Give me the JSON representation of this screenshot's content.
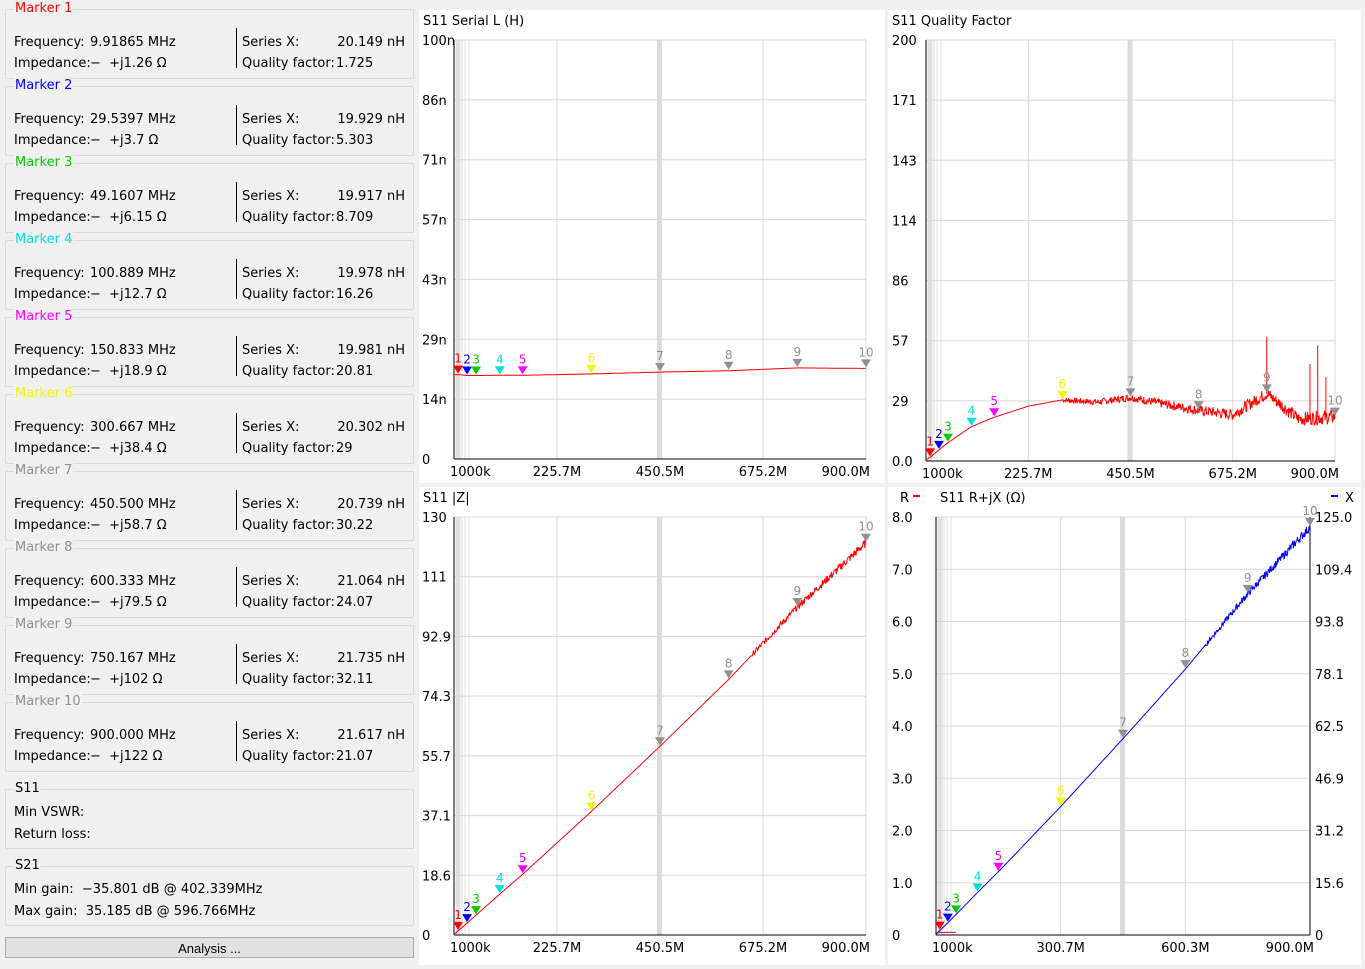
{
  "markers": [
    {
      "title": "Marker 1",
      "color": "#ff0000",
      "frequency": "9.91865 MHz",
      "impedance": "−  +j1.26 Ω",
      "series_x": "20.149 nH",
      "quality": "1.725"
    },
    {
      "title": "Marker 2",
      "color": "#0000ff",
      "frequency": "29.5397 MHz",
      "impedance": "−  +j3.7 Ω",
      "series_x": "19.929 nH",
      "quality": "5.303"
    },
    {
      "title": "Marker 3",
      "color": "#00cc00",
      "frequency": "49.1607 MHz",
      "impedance": "−  +j6.15 Ω",
      "series_x": "19.917 nH",
      "quality": "8.709"
    },
    {
      "title": "Marker 4",
      "color": "#00e0e0",
      "frequency": "100.889 MHz",
      "impedance": "−  +j12.7 Ω",
      "series_x": "19.978 nH",
      "quality": "16.26"
    },
    {
      "title": "Marker 5",
      "color": "#ff00ff",
      "frequency": "150.833 MHz",
      "impedance": "−  +j18.9 Ω",
      "series_x": "19.981 nH",
      "quality": "20.81"
    },
    {
      "title": "Marker 6",
      "color": "#f5f500",
      "frequency": "300.667 MHz",
      "impedance": "−  +j38.4 Ω",
      "series_x": "20.302 nH",
      "quality": "29"
    },
    {
      "title": "Marker 7",
      "color": "#909090",
      "frequency": "450.500 MHz",
      "impedance": "−  +j58.7 Ω",
      "series_x": "20.739 nH",
      "quality": "30.22"
    },
    {
      "title": "Marker 8",
      "color": "#909090",
      "frequency": "600.333 MHz",
      "impedance": "−  +j79.5 Ω",
      "series_x": "21.064 nH",
      "quality": "24.07"
    },
    {
      "title": "Marker 9",
      "color": "#909090",
      "frequency": "750.167 MHz",
      "impedance": "−  +j102 Ω",
      "series_x": "21.735 nH",
      "quality": "32.11"
    },
    {
      "title": "Marker 10",
      "color": "#909090",
      "frequency": "900.000 MHz",
      "impedance": "−  +j122 Ω",
      "series_x": "21.617 nH",
      "quality": "21.07"
    }
  ],
  "labels": {
    "frequency": "Frequency:",
    "impedance": "Impedance:",
    "series_x": "Series X:",
    "quality": "Quality factor:"
  },
  "s11": {
    "title": "S11",
    "min_vswr": "Min VSWR:",
    "return_loss": "Return loss:"
  },
  "s21": {
    "title": "S21",
    "min_gain": "Min gain:  −35.801 dB @ 402.339MHz",
    "max_gain": "Max gain:  35.185 dB @ 596.766MHz"
  },
  "analysis_button": "Analysis ...",
  "chart_data": [
    {
      "type": "line",
      "title": "S11  Serial L (H)",
      "xticks": [
        "1000k",
        "225.7M",
        "450.5M",
        "675.2M",
        "900.0M"
      ],
      "xlim": [
        1,
        900
      ],
      "yticks": [
        "100n",
        "86n",
        "71n",
        "57n",
        "43n",
        "29n",
        "14n",
        "0"
      ],
      "ylim": [
        0,
        100
      ],
      "series": [
        {
          "color": "#ff0000",
          "x": [
            1,
            9.92,
            29.54,
            49.16,
            100.89,
            150.83,
            300.67,
            450.5,
            600.33,
            750.17,
            900
          ],
          "y": [
            20.1,
            20.15,
            19.93,
            19.92,
            19.98,
            19.98,
            20.3,
            20.74,
            21.06,
            21.74,
            21.62
          ]
        }
      ],
      "markers": [
        {
          "label": "1",
          "x": 9.92,
          "y": 20.15
        },
        {
          "label": "2",
          "x": 29.54,
          "y": 19.93
        },
        {
          "label": "3",
          "x": 49.16,
          "y": 19.92
        },
        {
          "label": "4",
          "x": 100.89,
          "y": 19.98
        },
        {
          "label": "5",
          "x": 150.83,
          "y": 19.98
        },
        {
          "label": "6",
          "x": 300.67,
          "y": 20.3
        },
        {
          "label": "7",
          "x": 450.5,
          "y": 20.74
        },
        {
          "label": "8",
          "x": 600.33,
          "y": 21.06
        },
        {
          "label": "9",
          "x": 750.17,
          "y": 21.74
        },
        {
          "label": "10",
          "x": 900,
          "y": 21.62
        }
      ]
    },
    {
      "type": "line",
      "title": "S11  Quality Factor",
      "xticks": [
        "1000k",
        "225.7M",
        "450.5M",
        "675.2M",
        "900.0M"
      ],
      "xlim": [
        1,
        900
      ],
      "yticks": [
        "200",
        "171",
        "143",
        "114",
        "86",
        "57",
        "29",
        "0.0"
      ],
      "ylim": [
        0,
        200
      ],
      "series": [
        {
          "color": "#ff0000",
          "x": [
            1,
            9.92,
            29.54,
            49.16,
            100.89,
            150.83,
            225,
            300.67,
            380,
            450.5,
            525,
            600.33,
            675,
            750.17,
            820,
            900
          ],
          "y": [
            0.5,
            1.7,
            5.3,
            8.7,
            16.3,
            20.8,
            26,
            29,
            28,
            30.2,
            27,
            24.1,
            22,
            32.1,
            20,
            21.1
          ],
          "noise_from_x": 300,
          "spikes": [
            {
              "x": 750,
              "y": 59
            },
            {
              "x": 862,
              "y": 55
            },
            {
              "x": 845,
              "y": 46
            },
            {
              "x": 880,
              "y": 40
            }
          ]
        }
      ],
      "markers": [
        {
          "label": "1",
          "x": 9.92,
          "y": 1.7
        },
        {
          "label": "2",
          "x": 29.54,
          "y": 5.3
        },
        {
          "label": "3",
          "x": 49.16,
          "y": 8.7
        },
        {
          "label": "4",
          "x": 100.89,
          "y": 16.3
        },
        {
          "label": "5",
          "x": 150.83,
          "y": 20.8
        },
        {
          "label": "6",
          "x": 300.67,
          "y": 29
        },
        {
          "label": "7",
          "x": 450.5,
          "y": 30.2
        },
        {
          "label": "8",
          "x": 600.33,
          "y": 24.1
        },
        {
          "label": "9",
          "x": 750.17,
          "y": 32.1
        },
        {
          "label": "10",
          "x": 900,
          "y": 21.1
        }
      ]
    },
    {
      "type": "line",
      "title": "S11  |Z|",
      "xticks": [
        "1000k",
        "225.7M",
        "450.5M",
        "675.2M",
        "900.0M"
      ],
      "xlim": [
        1,
        900
      ],
      "yticks": [
        "130",
        "111",
        "92.9",
        "74.3",
        "55.7",
        "37.1",
        "18.6",
        "0"
      ],
      "ylim": [
        0,
        130
      ],
      "series": [
        {
          "color": "#ff0000",
          "x": [
            1,
            9.92,
            29.54,
            49.16,
            100.89,
            150.83,
            300.67,
            450.5,
            600.33,
            750.17,
            900
          ],
          "y": [
            0.2,
            1.3,
            3.7,
            6.2,
            12.7,
            18.9,
            38.4,
            58.7,
            79.5,
            102,
            122
          ],
          "noise_from_x": 650
        }
      ],
      "markers": [
        {
          "label": "1",
          "x": 9.92,
          "y": 1.3
        },
        {
          "label": "2",
          "x": 29.54,
          "y": 3.7
        },
        {
          "label": "3",
          "x": 49.16,
          "y": 6.2
        },
        {
          "label": "4",
          "x": 100.89,
          "y": 12.7
        },
        {
          "label": "5",
          "x": 150.83,
          "y": 18.9
        },
        {
          "label": "6",
          "x": 300.67,
          "y": 38.4
        },
        {
          "label": "7",
          "x": 450.5,
          "y": 58.7
        },
        {
          "label": "8",
          "x": 600.33,
          "y": 79.5
        },
        {
          "label": "9",
          "x": 750.17,
          "y": 102
        },
        {
          "label": "10",
          "x": 900,
          "y": 122
        }
      ]
    },
    {
      "type": "line",
      "title": "S11  R+jX (Ω)",
      "left_legend": "R",
      "right_legend": "X",
      "xticks": [
        "1000k",
        "300.7M",
        "600.3M",
        "900.0M"
      ],
      "xlim": [
        1,
        900
      ],
      "yticks_left": [
        "8.0",
        "7.0",
        "6.0",
        "5.0",
        "4.0",
        "3.0",
        "2.0",
        "1.0",
        "0"
      ],
      "ylim_left": [
        0,
        8
      ],
      "yticks_right": [
        "125.0",
        "109.4",
        "93.8",
        "78.1",
        "62.5",
        "46.9",
        "31.2",
        "15.6",
        "0"
      ],
      "ylim_right": [
        0,
        125
      ],
      "series": [
        {
          "name": "R",
          "color": "#ff0000",
          "axis": "left",
          "x": [
            1,
            9.92,
            29.54,
            49.16
          ],
          "y": [
            0.05,
            0.05,
            0.05,
            0.05
          ]
        },
        {
          "name": "X",
          "color": "#0000ff",
          "axis": "right",
          "x": [
            1,
            9.92,
            29.54,
            49.16,
            100.89,
            150.83,
            300.67,
            450.5,
            600.33,
            750.17,
            900
          ],
          "y": [
            0.2,
            1.3,
            3.7,
            6.15,
            12.7,
            18.9,
            38.4,
            58.7,
            79.5,
            102,
            122
          ],
          "noise_from_x": 650
        }
      ],
      "markers": [
        {
          "label": "1",
          "x": 9.92,
          "y": 1.3
        },
        {
          "label": "2",
          "x": 29.54,
          "y": 3.7
        },
        {
          "label": "3",
          "x": 49.16,
          "y": 6.15
        },
        {
          "label": "4",
          "x": 100.89,
          "y": 12.7
        },
        {
          "label": "5",
          "x": 150.83,
          "y": 18.9
        },
        {
          "label": "6",
          "x": 300.67,
          "y": 38.4
        },
        {
          "label": "7",
          "x": 450.5,
          "y": 58.7
        },
        {
          "label": "8",
          "x": 600.33,
          "y": 79.5
        },
        {
          "label": "9",
          "x": 750.17,
          "y": 102
        },
        {
          "label": "10",
          "x": 900,
          "y": 122
        }
      ]
    }
  ]
}
